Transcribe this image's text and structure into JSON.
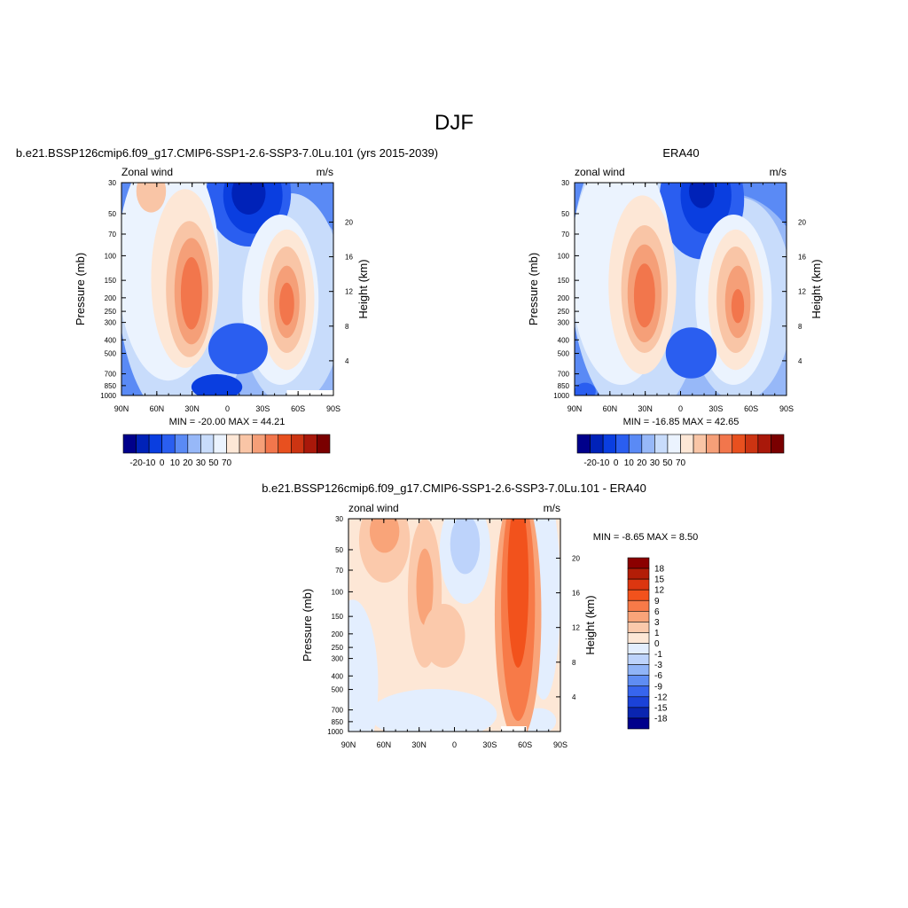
{
  "page_title": "DJF",
  "chart_data": [
    {
      "type": "heatmap",
      "title": "b.e21.BSSP126cmip6.f09_g17.CMIP6-SSP1-2.6-SSP3-7.0Lu.101 (yrs 2015-2039)",
      "left_string": "Zonal wind",
      "right_string": "m/s",
      "xlabel": "",
      "ylabel": "Pressure (mb)",
      "y2label": "Height (km)",
      "x_ticks": [
        "90N",
        "60N",
        "30N",
        "0",
        "30S",
        "60S",
        "90S"
      ],
      "y_ticks": [
        "30",
        "50",
        "70",
        "100",
        "150",
        "200",
        "250",
        "300",
        "400",
        "500",
        "700",
        "850",
        "1000"
      ],
      "y2_ticks": [
        "20",
        "16",
        "12",
        "8",
        "4"
      ],
      "stats": "MIN = -20.00  MAX =  44.21",
      "min": -20.0,
      "max": 44.21,
      "colorbar_labels": [
        "-20",
        "-10",
        "0",
        "10",
        "20",
        "30",
        "50",
        "70"
      ]
    },
    {
      "type": "heatmap",
      "title": "ERA40",
      "left_string": "zonal wind",
      "right_string": "m/s",
      "xlabel": "",
      "ylabel": "Pressure (mb)",
      "y2label": "Height (km)",
      "x_ticks": [
        "90N",
        "60N",
        "30N",
        "0",
        "30S",
        "60S",
        "90S"
      ],
      "y_ticks": [
        "30",
        "50",
        "70",
        "100",
        "150",
        "200",
        "250",
        "300",
        "400",
        "500",
        "700",
        "850",
        "1000"
      ],
      "y2_ticks": [
        "20",
        "16",
        "12",
        "8",
        "4"
      ],
      "stats": "MIN = -16.85  MAX =  42.65",
      "min": -16.85,
      "max": 42.65,
      "colorbar_labels": [
        "-20",
        "-10",
        "0",
        "10",
        "20",
        "30",
        "50",
        "70"
      ]
    },
    {
      "type": "heatmap",
      "title": "b.e21.BSSP126cmip6.f09_g17.CMIP6-SSP1-2.6-SSP3-7.0Lu.101 - ERA40",
      "left_string": "zonal wind",
      "right_string": "m/s",
      "xlabel": "",
      "ylabel": "Pressure (mb)",
      "y2label": "Height (km)",
      "x_ticks": [
        "90N",
        "60N",
        "30N",
        "0",
        "30S",
        "60S",
        "90S"
      ],
      "y_ticks": [
        "30",
        "50",
        "70",
        "100",
        "150",
        "200",
        "250",
        "300",
        "400",
        "500",
        "700",
        "850",
        "1000"
      ],
      "y2_ticks": [
        "20",
        "16",
        "12",
        "8",
        "4"
      ],
      "stats": "MIN =  -8.65  MAX =   8.50",
      "min": -8.65,
      "max": 8.5,
      "colorbar_labels": [
        "18",
        "15",
        "12",
        "9",
        "6",
        "3",
        "1",
        "0",
        "-1",
        "-3",
        "-6",
        "-9",
        "-12",
        "-15",
        "-18"
      ]
    }
  ],
  "colors": {
    "main_colorbar": [
      "#00008b",
      "#0022b8",
      "#0a3ee0",
      "#2a5ef0",
      "#5a8af5",
      "#97b8f8",
      "#c8dcfb",
      "#ebf3fe",
      "#fde7d6",
      "#f9c5a6",
      "#f59f78",
      "#f2764c",
      "#e8501f",
      "#cc3412",
      "#a9180a",
      "#7a0000"
    ],
    "diff_colorbar": [
      "#8b0000",
      "#b31d07",
      "#dc3610",
      "#f2521c",
      "#f77a48",
      "#f9a479",
      "#fbc9ab",
      "#fde7d6",
      "#e3eefe",
      "#bdd3fb",
      "#90b4f7",
      "#5f8df3",
      "#3765ee",
      "#1b42d8",
      "#0a25b0",
      "#00008b"
    ]
  }
}
